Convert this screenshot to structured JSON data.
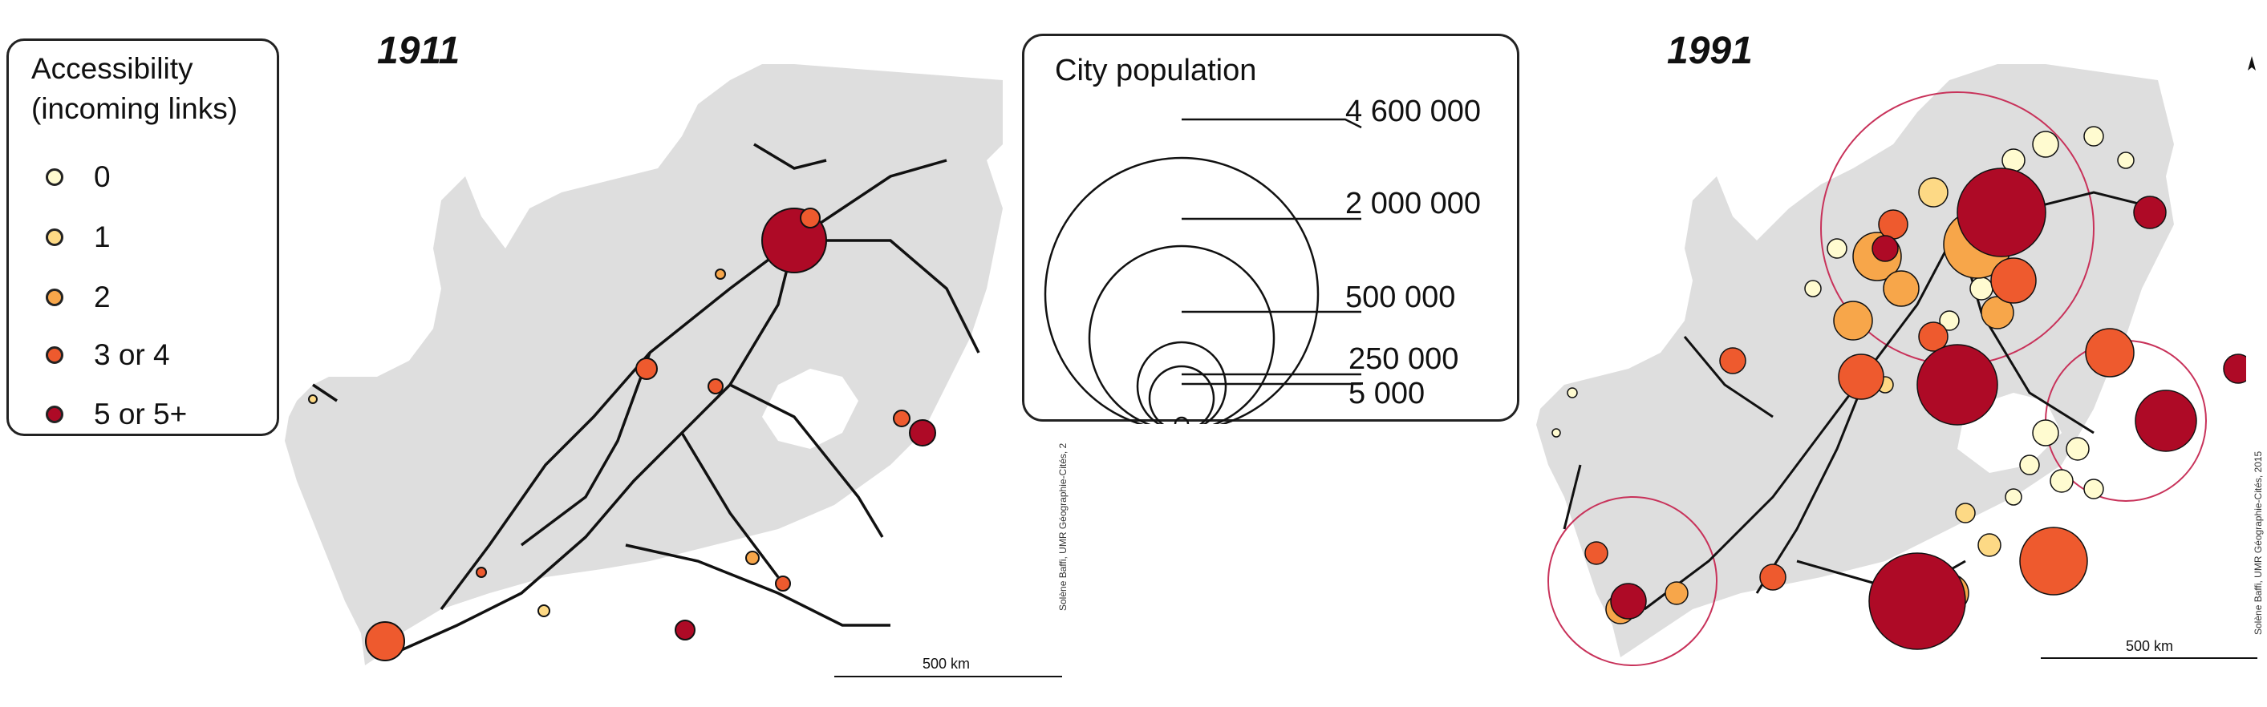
{
  "legend": {
    "title_line1": "Accessibility",
    "title_line2": "(incoming links)",
    "items": [
      {
        "label": "0",
        "color": "#fffbd0"
      },
      {
        "label": "1",
        "color": "#fdd985"
      },
      {
        "label": "2",
        "color": "#f7a64a"
      },
      {
        "label": "3 or 4",
        "color": "#ee5a2e"
      },
      {
        "label": "5 or 5+",
        "color": "#ae0a26"
      }
    ]
  },
  "map_left": {
    "year": "1911",
    "scale": "500 km",
    "credit": "Solène Baffi, UMR Géographie-Cités, 2"
  },
  "map_right": {
    "year": "1991",
    "scale": "500 km",
    "credit": "Solène Baffi, UMR Géographie-Cités, 2015"
  },
  "population_legend": {
    "title": "City population",
    "values": [
      "4 600 000",
      "2 000 000",
      "500 000",
      "250 000",
      "5 000"
    ]
  },
  "colors": {
    "land": "#dedede",
    "rail": "#111111",
    "ring": "#c8325a"
  }
}
